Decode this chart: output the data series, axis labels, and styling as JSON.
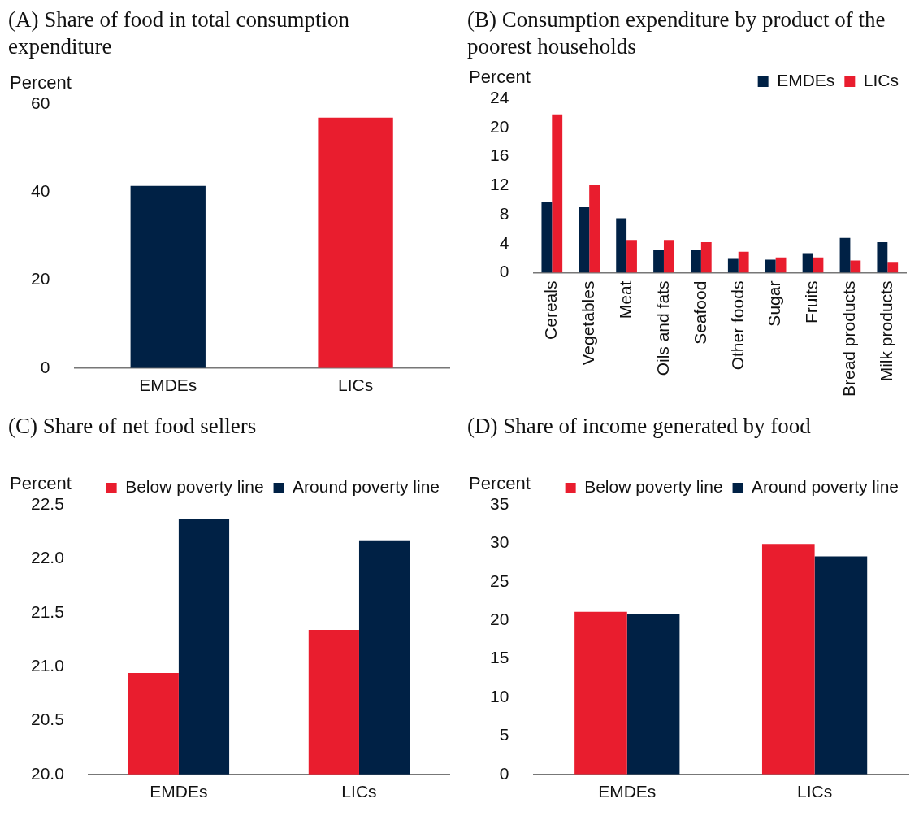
{
  "chart_data": [
    {
      "type": "bar",
      "title": "(A) Share of food in total consumption expenditure",
      "ylabel": "Percent",
      "categories": [
        "EMDEs",
        "LICs"
      ],
      "values": [
        41.4,
        56.9
      ],
      "colors": [
        "#002145",
        "#e91d2e"
      ],
      "ylim": [
        0,
        60
      ],
      "yticks": [
        0,
        20,
        40,
        60
      ],
      "grid": false,
      "legend": false
    },
    {
      "type": "bar",
      "title": "(B) Consumption expenditure by product of the poorest households",
      "ylabel": "Percent",
      "categories": [
        "Cereals",
        "Vegetables",
        "Meat",
        "Oils and fats",
        "Seafood",
        "Other foods",
        "Sugar",
        "Fruits",
        "Bread products",
        "Milk products"
      ],
      "series": [
        {
          "name": "EMDEs",
          "color": "#002145",
          "values": [
            9.8,
            9.0,
            7.5,
            3.2,
            3.2,
            1.9,
            1.8,
            2.7,
            4.8,
            4.2
          ]
        },
        {
          "name": "LICs",
          "color": "#e91d2e",
          "values": [
            21.8,
            12.1,
            4.5,
            4.5,
            4.2,
            2.9,
            2.1,
            2.1,
            1.7,
            1.5
          ]
        }
      ],
      "ylim": [
        0,
        24
      ],
      "yticks": [
        0,
        4,
        8,
        12,
        16,
        20,
        24
      ],
      "grid": false,
      "legend": "top"
    },
    {
      "type": "bar",
      "title": "(C) Share of net food sellers",
      "ylabel": "Percent",
      "categories": [
        "EMDEs",
        "LICs"
      ],
      "series": [
        {
          "name": "Below poverty line",
          "color": "#e91d2e",
          "values": [
            20.94,
            21.34
          ]
        },
        {
          "name": "Around poverty line",
          "color": "#002145",
          "values": [
            22.37,
            22.17
          ]
        }
      ],
      "ylim": [
        20,
        22.5
      ],
      "yticks": [
        {
          "value": 20,
          "label": "20.0"
        },
        20.5,
        {
          "value": 21,
          "label": "21.0"
        },
        21.5,
        {
          "value": 22,
          "label": "22.0"
        },
        22.5
      ],
      "grid": false,
      "legend": "top"
    },
    {
      "type": "bar",
      "title": "(D) Share of income generated by food",
      "ylabel": "Percent",
      "categories": [
        "EMDEs",
        "LICs"
      ],
      "series": [
        {
          "name": "Below poverty line",
          "color": "#e91d2e",
          "values": [
            21.1,
            29.9
          ]
        },
        {
          "name": "Around poverty line",
          "color": "#002145",
          "values": [
            20.8,
            28.3
          ]
        }
      ],
      "ylim": [
        0,
        35
      ],
      "yticks": [
        0,
        5,
        10,
        15,
        20,
        25,
        30,
        35
      ],
      "grid": false,
      "legend": "top"
    }
  ]
}
